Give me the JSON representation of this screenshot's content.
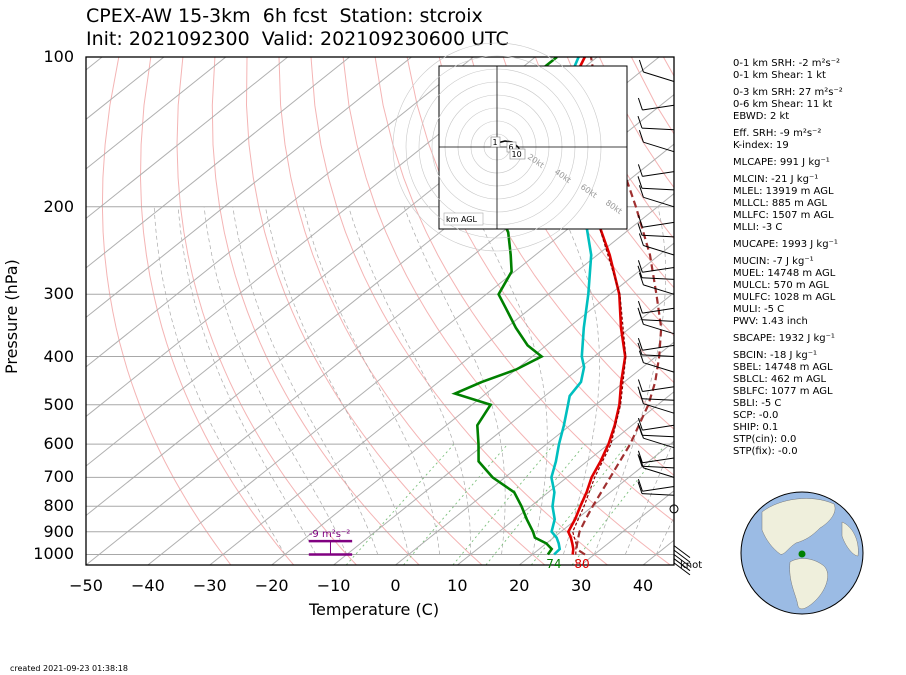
{
  "chart_data": {
    "type": "line",
    "title_line1": "CPEX-AW 15-3km  6h fcst  Station: stcroix",
    "title_line2": "Init: 2021092300  Valid: 202109230600 UTC",
    "xlabel": "Temperature (C)",
    "ylabel": "Pressure (hPa)",
    "xlim": [
      -50,
      45
    ],
    "ylim": [
      1050,
      100
    ],
    "yscale": "log",
    "skew": "skew-T",
    "x_ticks": [
      "−50",
      "−40",
      "−30",
      "−20",
      "−10",
      "0",
      "10",
      "20",
      "30",
      "40"
    ],
    "y_ticks": [
      "100",
      "200",
      "300",
      "400",
      "500",
      "600",
      "700",
      "800",
      "900",
      "1000"
    ],
    "y_tick_values": [
      100,
      200,
      300,
      400,
      500,
      600,
      700,
      800,
      900,
      1000
    ],
    "series": [
      {
        "key": "temperature",
        "color": "#e00000",
        "points": [
          [
            1000,
            26.5
          ],
          [
            975,
            25.5
          ],
          [
            950,
            24.2
          ],
          [
            925,
            22.8
          ],
          [
            900,
            21.2
          ],
          [
            850,
            19.8
          ],
          [
            800,
            18.0
          ],
          [
            750,
            16.2
          ],
          [
            700,
            14.0
          ],
          [
            650,
            12.2
          ],
          [
            600,
            10.0
          ],
          [
            550,
            7.2
          ],
          [
            500,
            3.8
          ],
          [
            450,
            -0.5
          ],
          [
            400,
            -5.0
          ],
          [
            350,
            -11.5
          ],
          [
            300,
            -18.5
          ],
          [
            250,
            -28.0
          ],
          [
            200,
            -40.5
          ],
          [
            150,
            -55.5
          ],
          [
            130,
            -62.5
          ],
          [
            110,
            -69.5
          ],
          [
            100,
            -72.0
          ]
        ]
      },
      {
        "key": "virtual_temperature",
        "color": "#8b0000",
        "points": [
          [
            1000,
            27.0
          ],
          [
            950,
            24.8
          ],
          [
            900,
            21.9
          ],
          [
            800,
            18.6
          ],
          [
            700,
            14.5
          ],
          [
            600,
            10.4
          ],
          [
            500,
            4.0
          ],
          [
            400,
            -4.9
          ],
          [
            300,
            -18.4
          ],
          [
            200,
            -40.4
          ]
        ]
      },
      {
        "key": "dewpoint",
        "color": "#008000",
        "points": [
          [
            1000,
            22.5
          ],
          [
            975,
            22.0
          ],
          [
            950,
            20.0
          ],
          [
            925,
            17.0
          ],
          [
            900,
            15.5
          ],
          [
            850,
            12.0
          ],
          [
            800,
            8.5
          ],
          [
            750,
            4.5
          ],
          [
            700,
            -2.0
          ],
          [
            650,
            -7.5
          ],
          [
            600,
            -11.0
          ],
          [
            550,
            -15.0
          ],
          [
            500,
            -17.0
          ],
          [
            475,
            -25.0
          ],
          [
            450,
            -23.0
          ],
          [
            425,
            -20.0
          ],
          [
            400,
            -18.5
          ],
          [
            380,
            -23.0
          ],
          [
            350,
            -28.5
          ],
          [
            320,
            -34.0
          ],
          [
            300,
            -38.0
          ],
          [
            270,
            -40.5
          ],
          [
            250,
            -44.0
          ],
          [
            225,
            -49.0
          ],
          [
            200,
            -56.0
          ],
          [
            175,
            -62.0
          ],
          [
            150,
            -67.5
          ],
          [
            130,
            -75.0
          ],
          [
            110,
            -76.5
          ],
          [
            100,
            -76.5
          ]
        ]
      },
      {
        "key": "wetbulb",
        "color": "#00bfbf",
        "points": [
          [
            1000,
            23.5
          ],
          [
            975,
            23.3
          ],
          [
            950,
            22.0
          ],
          [
            925,
            20.5
          ],
          [
            900,
            18.5
          ],
          [
            850,
            16.5
          ],
          [
            800,
            13.5
          ],
          [
            750,
            11.0
          ],
          [
            700,
            7.5
          ],
          [
            650,
            5.0
          ],
          [
            600,
            2.0
          ],
          [
            550,
            -1.0
          ],
          [
            500,
            -4.5
          ],
          [
            480,
            -6.0
          ],
          [
            450,
            -7.0
          ],
          [
            420,
            -9.5
          ],
          [
            400,
            -12.0
          ],
          [
            350,
            -17.5
          ],
          [
            300,
            -23.5
          ],
          [
            250,
            -31.0
          ],
          [
            200,
            -42.0
          ],
          [
            150,
            -56.0
          ],
          [
            130,
            -62.5
          ],
          [
            115,
            -69.0
          ],
          [
            100,
            -73.0
          ]
        ]
      },
      {
        "key": "parcel",
        "color": "#a03030",
        "points": [
          [
            1000,
            28.5
          ],
          [
            975,
            26.0
          ],
          [
            950,
            25.0
          ],
          [
            925,
            24.0
          ],
          [
            900,
            23.0
          ],
          [
            850,
            21.5
          ],
          [
            800,
            20.0
          ],
          [
            700,
            17.0
          ],
          [
            600,
            13.5
          ],
          [
            500,
            8.5
          ],
          [
            450,
            5.0
          ],
          [
            400,
            0.5
          ],
          [
            350,
            -5.0
          ],
          [
            300,
            -12.5
          ],
          [
            250,
            -21.5
          ],
          [
            200,
            -33.5
          ],
          [
            150,
            -49.5
          ],
          [
            120,
            -62.0
          ],
          [
            100,
            -71.0
          ]
        ]
      }
    ],
    "surface_labels": [
      {
        "text": "74",
        "color": "#008000",
        "temp": 22.5
      },
      {
        "text": "80",
        "color": "#e00000",
        "temp": 28.0
      }
    ],
    "srh_marker": {
      "text": "-9 m²s⁻²",
      "color": "#800080",
      "levels_hpa": [
        940,
        1000
      ],
      "temp_range": [
        -14,
        -7
      ]
    },
    "wind_units": "knot",
    "hodograph": {
      "corner_label": "km AGL",
      "ring_labels": [
        "20kt",
        "40kt",
        "60kt",
        "80kt"
      ],
      "markers": [
        "1",
        "6",
        "10"
      ]
    },
    "stats": [
      "0-1 km SRH: -2 m²s⁻²",
      "0-1 km Shear: 1 kt",
      "0-3 km SRH: 27 m²s⁻²",
      "0-6 km Shear: 11 kt",
      "EBWD: 2 kt",
      "Eff. SRH: -9 m²s⁻²",
      "K-index: 19",
      "MLCAPE: 991 J kg⁻¹",
      "MLCIN: -21 J kg⁻¹",
      "MLEL: 13919 m AGL",
      "MLLCL: 885 m AGL",
      "MLLFC: 1507 m AGL",
      "MLLI: -3 C",
      "MUCAPE: 1993 J kg⁻¹",
      "MUCIN: -7 J kg⁻¹",
      "MUEL: 14748 m AGL",
      "MULCL: 570 m AGL",
      "MULFC: 1028 m AGL",
      "MULI: -5 C",
      "PWV: 1.43 inch",
      "SBCAPE: 1932 J kg⁻¹",
      "SBCIN: -18 J kg⁻¹",
      "SBEL: 14748 m AGL",
      "SBLCL: 462 m AGL",
      "SBLFC: 1077 m AGL",
      "SBLI: -5 C",
      "SCP: -0.0",
      "SHIP: 0.1",
      "STP(cin): 0.0",
      "STP(fix): -0.0"
    ],
    "footer": "created 2021-09-23 01:38:18",
    "colors": {
      "land": "#efefdc",
      "ocean": "#9bbbe4",
      "station": "#008000"
    }
  }
}
